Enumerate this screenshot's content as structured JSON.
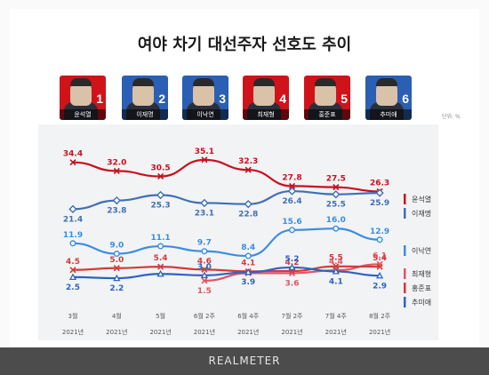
{
  "title": "여야 차기 대선주자 선호도 추이",
  "unit": "단위: %",
  "footer": "REALMETER",
  "candidates": [
    {
      "rank": "1",
      "name": "윤석열",
      "color": "#d0131b"
    },
    {
      "rank": "2",
      "name": "이재명",
      "color": "#2a5fb3"
    },
    {
      "rank": "3",
      "name": "이낙연",
      "color": "#2a5fb3"
    },
    {
      "rank": "4",
      "name": "최재형",
      "color": "#d0131b"
    },
    {
      "rank": "5",
      "name": "홍준표",
      "color": "#d0131b"
    },
    {
      "rank": "6",
      "name": "추미애",
      "color": "#2a5fb3"
    }
  ],
  "chart_data": {
    "type": "line",
    "categories": [
      [
        "3월",
        "2021년"
      ],
      [
        "4월",
        "2021년"
      ],
      [
        "5월",
        "2021년"
      ],
      [
        "6월 2주",
        "2021년"
      ],
      [
        "6월 4주",
        "2021년"
      ],
      [
        "7월 2주",
        "2021년"
      ],
      [
        "7월 4주",
        "2021년"
      ],
      [
        "8월 2주",
        "2021년"
      ]
    ],
    "ylim": [
      0,
      40
    ],
    "grid": false,
    "legend": "right",
    "series": [
      {
        "name": "윤석열",
        "color": "#c8101f",
        "x": [
          0,
          1,
          2,
          3,
          4,
          5,
          6,
          7
        ],
        "values": [
          34.4,
          32.0,
          30.5,
          35.1,
          32.3,
          27.8,
          27.5,
          26.3
        ],
        "labels": [
          "34.4",
          "32.0",
          "30.5",
          "35.1",
          "32.3",
          "27.8",
          "27.5",
          "26.3"
        ],
        "label_pos": [
          "above",
          "above",
          "above",
          "above",
          "above",
          "above",
          "above",
          "above"
        ]
      },
      {
        "name": "이재명",
        "color": "#3f6fb5",
        "x": [
          0,
          1,
          2,
          3,
          4,
          5,
          6,
          7
        ],
        "values": [
          21.4,
          23.8,
          25.3,
          23.1,
          22.8,
          26.4,
          25.5,
          25.9
        ],
        "labels": [
          "21.4",
          "23.8",
          "25.3",
          "23.1",
          "22.8",
          "26.4",
          "25.5",
          "25.9"
        ],
        "label_pos": [
          "below",
          "below",
          "below",
          "below",
          "below",
          "below",
          "below",
          "below"
        ]
      },
      {
        "name": "이낙연",
        "color": "#3b8ee0",
        "x": [
          0,
          1,
          2,
          3,
          4,
          5,
          6,
          7
        ],
        "values": [
          11.9,
          9.0,
          11.1,
          9.7,
          8.4,
          15.6,
          16.0,
          12.9
        ],
        "labels": [
          "11.9",
          "9.0",
          "11.1",
          "9.7",
          "8.4",
          "15.6",
          "16.0",
          "12.9"
        ],
        "label_pos": [
          "above",
          "above",
          "above",
          "above",
          "above",
          "above",
          "above",
          "above"
        ]
      },
      {
        "name": "최재형",
        "color": "#e05563",
        "x": [
          3,
          4,
          5,
          6,
          7
        ],
        "values": [
          1.5,
          3.6,
          3.6,
          4.4,
          6.1
        ],
        "labels": [
          "1.5",
          "",
          "3.6",
          "4.4",
          "6.1"
        ],
        "label_pos": [
          "below",
          "below",
          "below",
          "above",
          "above"
        ]
      },
      {
        "name": "홍준표",
        "color": "#d63a3a",
        "x": [
          0,
          1,
          2,
          3,
          4,
          5,
          6,
          7
        ],
        "values": [
          4.5,
          5.0,
          5.4,
          4.6,
          4.1,
          4.2,
          5.5,
          5.4
        ],
        "labels": [
          "4.5",
          "5.0",
          "5.4",
          "4.6",
          "4.1",
          "4.2",
          "5.5",
          "5.4"
        ],
        "label_pos": [
          "above",
          "above",
          "above",
          "above",
          "above",
          "above",
          "above",
          "above"
        ]
      },
      {
        "name": "추미애",
        "color": "#2d63c2",
        "x": [
          0,
          1,
          2,
          3,
          4,
          5,
          6,
          7
        ],
        "values": [
          2.5,
          2.2,
          3.4,
          3.0,
          3.9,
          5.2,
          4.1,
          2.9
        ],
        "labels": [
          "2.5",
          "2.2",
          "",
          "3.0",
          "3.9",
          "5.2",
          "4.1",
          "2.9"
        ],
        "label_pos": [
          "below",
          "below",
          "below",
          "above",
          "below",
          "above",
          "below",
          "below"
        ]
      }
    ]
  }
}
